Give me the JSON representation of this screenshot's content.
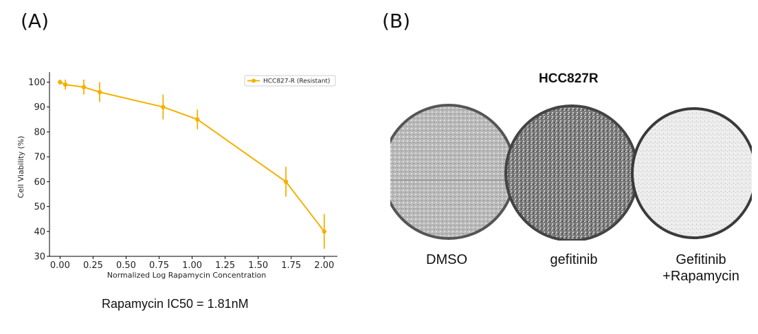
{
  "panel_labels": {
    "a": "(A)",
    "b": "(B)"
  },
  "caption": "Rapamycin IC50 = 1.81nM",
  "panel_b": {
    "title": "HCC827R",
    "dishes": [
      {
        "line1": "DMSO",
        "line2": ""
      },
      {
        "line1": "gefitinib",
        "line2": ""
      },
      {
        "line1": "Gefitinib",
        "line2": "+Rapamycin"
      }
    ]
  },
  "chart_data": {
    "type": "line",
    "xlabel": "Normalized Log Rapamycin Concentration",
    "ylabel": "Cell Viability (%)",
    "xlim": [
      -0.08,
      2.1
    ],
    "ylim": [
      30,
      104
    ],
    "x_ticks": [
      0.0,
      0.25,
      0.5,
      0.75,
      1.0,
      1.25,
      1.5,
      1.75,
      2.0
    ],
    "x_tick_labels": [
      "0.00",
      "0.25",
      "0.50",
      "0.75",
      "1.00",
      "1.25",
      "1.50",
      "1.75",
      "2.00"
    ],
    "y_ticks": [
      30,
      40,
      50,
      60,
      70,
      80,
      90,
      100
    ],
    "y_tick_labels": [
      "30",
      "40",
      "50",
      "60",
      "70",
      "80",
      "90",
      "100"
    ],
    "grid": false,
    "legend_position": "top-right",
    "series": [
      {
        "name": "HCC827-R (Resistant)",
        "color": "#f5b000",
        "x": [
          0.0,
          0.04,
          0.18,
          0.3,
          0.78,
          1.04,
          1.71,
          2.0
        ],
        "y": [
          100,
          99,
          98,
          96,
          90,
          85,
          60,
          40
        ],
        "err": [
          1,
          2,
          3,
          4,
          5,
          4,
          6,
          7
        ]
      }
    ]
  }
}
